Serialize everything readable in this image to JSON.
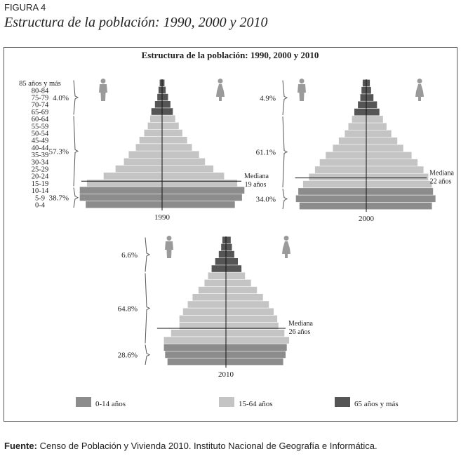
{
  "figure_label": "FIGURA 4",
  "figure_title": "Estructura de la población: 1990, 2000 y 2010",
  "source_label": "Fuente:",
  "source_text": "Censo de Población y Vivienda 2010. Instituto Nacional de Geografía e Informática.",
  "colors": {
    "g0_14": "#8c8c8c",
    "g15_64": "#c4c4c4",
    "g65": "#555555"
  },
  "icons": [
    "man-icon",
    "woman-icon"
  ],
  "chart_data": {
    "type": "population-pyramid",
    "title": "Estructura de la población: 1990, 2000 y 2010",
    "age_groups": [
      "0-4",
      "5-9",
      "10-14",
      "15-19",
      "20-24",
      "25-29",
      "30-34",
      "35-39",
      "40-44",
      "45-49",
      "50-54",
      "55-59",
      "60-64",
      "65-69",
      "70-74",
      "75-79",
      "80-84",
      "85 años y más"
    ],
    "legend": [
      {
        "key": "g0_14",
        "label": "0-14 años"
      },
      {
        "key": "g15_64",
        "label": "15-64 años"
      },
      {
        "key": "g65",
        "label": "65 años y más"
      }
    ],
    "pyramids": [
      {
        "year": "1990",
        "median_label": "Mediana",
        "median_value": "19 años",
        "median_age": 19,
        "group_shares": [
          "38.7%",
          "57.3%",
          "4.0%"
        ],
        "male": [
          6.4,
          6.9,
          6.9,
          6.3,
          4.9,
          3.9,
          3.2,
          2.8,
          2.2,
          1.9,
          1.5,
          1.2,
          1.0,
          0.9,
          0.6,
          0.4,
          0.3,
          0.2
        ],
        "female": [
          6.1,
          6.7,
          6.9,
          6.3,
          5.2,
          4.3,
          3.6,
          3.1,
          2.5,
          2.1,
          1.7,
          1.4,
          1.1,
          0.9,
          0.7,
          0.5,
          0.3,
          0.2
        ]
      },
      {
        "year": "2000",
        "median_label": "Mediana",
        "median_value": "22 años",
        "median_age": 22,
        "group_shares": [
          "34.0%",
          "61.1%",
          "4.9%"
        ],
        "male": [
          5.6,
          5.9,
          5.7,
          5.3,
          4.8,
          4.3,
          3.9,
          3.4,
          2.8,
          2.3,
          1.8,
          1.5,
          1.2,
          1.0,
          0.7,
          0.5,
          0.4,
          0.3
        ],
        "female": [
          5.5,
          5.8,
          5.6,
          5.5,
          5.2,
          4.8,
          4.3,
          3.8,
          3.1,
          2.6,
          2.1,
          1.7,
          1.4,
          1.1,
          0.9,
          0.6,
          0.4,
          0.3
        ]
      },
      {
        "year": "2010",
        "median_label": "Mediana",
        "median_value": "26 años",
        "median_age": 26,
        "group_shares": [
          "28.6%",
          "64.8%",
          "6.6%"
        ],
        "male": [
          4.9,
          5.1,
          5.2,
          5.2,
          4.6,
          3.9,
          3.9,
          3.6,
          3.2,
          2.8,
          2.3,
          1.8,
          1.5,
          1.2,
          0.9,
          0.6,
          0.4,
          0.3
        ],
        "female": [
          4.8,
          5.0,
          5.1,
          5.3,
          4.9,
          4.4,
          4.3,
          4.0,
          3.6,
          3.1,
          2.6,
          2.1,
          1.6,
          1.3,
          1.0,
          0.7,
          0.5,
          0.4
        ]
      }
    ]
  }
}
